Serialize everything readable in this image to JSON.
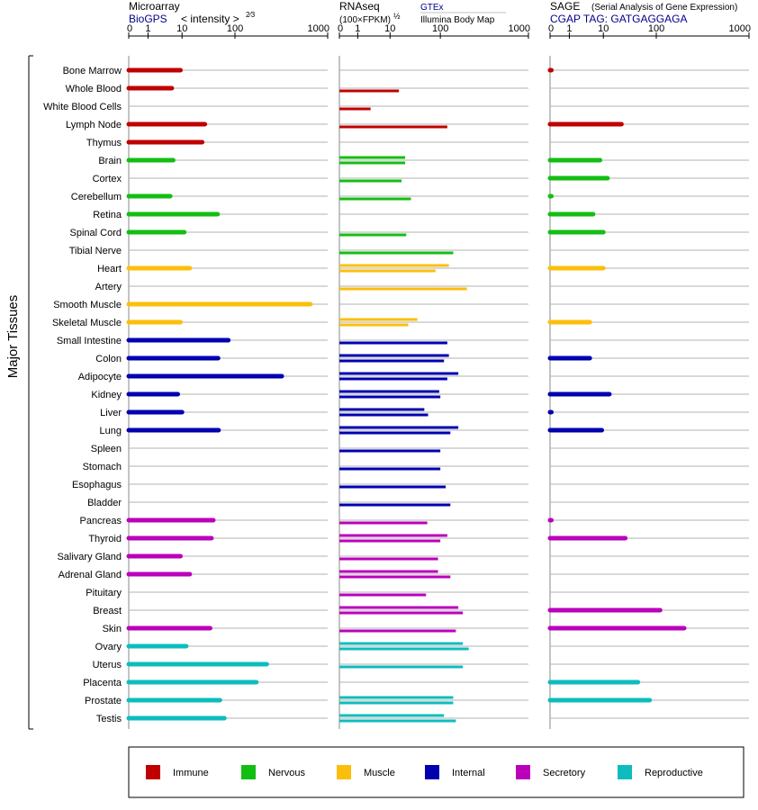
{
  "colors": {
    "Immune": "#c00000",
    "Nervous": "#13be13",
    "Muscle": "#fbbf0b",
    "Internal": "#0000b0",
    "Secretory": "#bb00bb",
    "Reproductive": "#0dbdbd",
    "grid": "#b0b0b0",
    "axis": "#000000",
    "header_blue": "#00008b"
  },
  "y_axis_label": "Major Tissues",
  "panels": [
    {
      "title": "Microarray",
      "subtitle": "BioGPS",
      "scale_label": "< intensity >",
      "scale_exponent": "2⁄3",
      "ticks": [
        "0",
        "1",
        "10",
        "100",
        "1000"
      ]
    },
    {
      "title": "RNAseq",
      "scale_label": "(100×FPKM)",
      "scale_exponent": "½",
      "source_top": "GTEx",
      "source_bottom": "Illumina Body Map",
      "ticks": [
        "0",
        "1",
        "10",
        "100",
        "1000"
      ]
    },
    {
      "title": "SAGE",
      "title_note": "(Serial Analysis of Gene Expression)",
      "subtitle": "CGAP TAG: GATGAGGAGA",
      "ticks": [
        "0",
        "1",
        "10",
        "100",
        "1000"
      ]
    }
  ],
  "legend": [
    {
      "name": "Immune",
      "color": "#c00000"
    },
    {
      "name": "Nervous",
      "color": "#13be13"
    },
    {
      "name": "Muscle",
      "color": "#fbbf0b"
    },
    {
      "name": "Internal",
      "color": "#0000b0"
    },
    {
      "name": "Secretory",
      "color": "#bb00bb"
    },
    {
      "name": "Reproductive",
      "color": "#0dbdbd"
    }
  ],
  "chart_data": {
    "type": "bar",
    "x_scale": "log-like, ticks at 0, 1, 10, 100, 1000",
    "xlim": [
      0,
      1000
    ],
    "grid": true,
    "legend_position": "bottom",
    "tissues": [
      {
        "name": "Bone Marrow",
        "group": "Immune",
        "microarray": 9,
        "rnaseq": [],
        "sage": 0.05
      },
      {
        "name": "Whole Blood",
        "group": "Immune",
        "microarray": 5,
        "rnaseq": [
          15
        ],
        "sage": null
      },
      {
        "name": "White Blood Cells",
        "group": "Immune",
        "microarray": null,
        "rnaseq": [
          2.5
        ],
        "sage": null
      },
      {
        "name": "Lymph Node",
        "group": "Immune",
        "microarray": 27,
        "rnaseq": [
          120
        ],
        "sage": 22
      },
      {
        "name": "Thymus",
        "group": "Immune",
        "microarray": 24,
        "rnaseq": [],
        "sage": null
      },
      {
        "name": "Brain",
        "group": "Nervous",
        "microarray": 5.5,
        "rnaseq": [
          20,
          20
        ],
        "sage": 8
      },
      {
        "name": "Cortex",
        "group": "Nervous",
        "microarray": null,
        "rnaseq": [
          17
        ],
        "sage": 12
      },
      {
        "name": "Cerebellum",
        "group": "Nervous",
        "microarray": 4.5,
        "rnaseq": [
          26
        ],
        "sage": 0.05
      },
      {
        "name": "Retina",
        "group": "Nervous",
        "microarray": 47,
        "rnaseq": [],
        "sage": 5
      },
      {
        "name": "Spinal Cord",
        "group": "Nervous",
        "microarray": 11,
        "rnaseq": [
          21
        ],
        "sage": 10
      },
      {
        "name": "Tibial Nerve",
        "group": "Nervous",
        "microarray": null,
        "rnaseq": [
          140
        ],
        "sage": null
      },
      {
        "name": "Heart",
        "group": "Muscle",
        "microarray": 14,
        "rnaseq": [
          125,
          80
        ],
        "sage": 10
      },
      {
        "name": "Artery",
        "group": "Muscle",
        "microarray": null,
        "rnaseq": [
          200
        ],
        "sage": null
      },
      {
        "name": "Smooth Muscle",
        "group": "Muscle",
        "microarray": 650,
        "rnaseq": [],
        "sage": null
      },
      {
        "name": "Skeletal Muscle",
        "group": "Muscle",
        "microarray": 9,
        "rnaseq": [
          35,
          23
        ],
        "sage": 4
      },
      {
        "name": "Small Intestine",
        "group": "Internal",
        "microarray": 75,
        "rnaseq": [
          120
        ],
        "sage": null
      },
      {
        "name": "Colon",
        "group": "Internal",
        "microarray": 48,
        "rnaseq": [
          125,
          110
        ],
        "sage": 4
      },
      {
        "name": "Adipocyte",
        "group": "Internal",
        "microarray": 320,
        "rnaseq": [
          160,
          120
        ],
        "sage": null
      },
      {
        "name": "Kidney",
        "group": "Internal",
        "microarray": 7.5,
        "rnaseq": [
          95,
          100
        ],
        "sage": 13
      },
      {
        "name": "Liver",
        "group": "Internal",
        "microarray": 10,
        "rnaseq": [
          48,
          57
        ],
        "sage": 0.05
      },
      {
        "name": "Lung",
        "group": "Internal",
        "microarray": 49,
        "rnaseq": [
          160,
          130
        ],
        "sage": 9
      },
      {
        "name": "Spleen",
        "group": "Internal",
        "microarray": null,
        "rnaseq": [
          100
        ],
        "sage": null
      },
      {
        "name": "Stomach",
        "group": "Internal",
        "microarray": null,
        "rnaseq": [
          100
        ],
        "sage": null
      },
      {
        "name": "Esophagus",
        "group": "Internal",
        "microarray": null,
        "rnaseq": [
          115
        ],
        "sage": null
      },
      {
        "name": "Bladder",
        "group": "Internal",
        "microarray": null,
        "rnaseq": [
          130
        ],
        "sage": null
      },
      {
        "name": "Pancreas",
        "group": "Secretory",
        "microarray": 39,
        "rnaseq": [
          55
        ],
        "sage": 0.05
      },
      {
        "name": "Thyroid",
        "group": "Secretory",
        "microarray": 36,
        "rnaseq": [
          120,
          100
        ],
        "sage": 26
      },
      {
        "name": "Salivary Gland",
        "group": "Secretory",
        "microarray": 9,
        "rnaseq": [
          90
        ],
        "sage": null
      },
      {
        "name": "Adrenal Gland",
        "group": "Secretory",
        "microarray": 14,
        "rnaseq": [
          90,
          130
        ],
        "sage": null
      },
      {
        "name": "Pituitary",
        "group": "Secretory",
        "microarray": null,
        "rnaseq": [
          52
        ],
        "sage": null
      },
      {
        "name": "Breast",
        "group": "Secretory",
        "microarray": null,
        "rnaseq": [
          160,
          180
        ],
        "sage": 110
      },
      {
        "name": "Skin",
        "group": "Secretory",
        "microarray": 34,
        "rnaseq": [
          150
        ],
        "sage": 200
      },
      {
        "name": "Ovary",
        "group": "Reproductive",
        "microarray": 12,
        "rnaseq": [
          180,
          210
        ],
        "sage": null
      },
      {
        "name": "Uterus",
        "group": "Reproductive",
        "microarray": 220,
        "rnaseq": [
          180
        ],
        "sage": null
      },
      {
        "name": "Placenta",
        "group": "Reproductive",
        "microarray": 170,
        "rnaseq": [],
        "sage": 45
      },
      {
        "name": "Prostate",
        "group": "Reproductive",
        "microarray": 52,
        "rnaseq": [
          140,
          140
        ],
        "sage": 75
      },
      {
        "name": "Testis",
        "group": "Reproductive",
        "microarray": 63,
        "rnaseq": [
          110,
          150
        ],
        "sage": null
      }
    ]
  }
}
